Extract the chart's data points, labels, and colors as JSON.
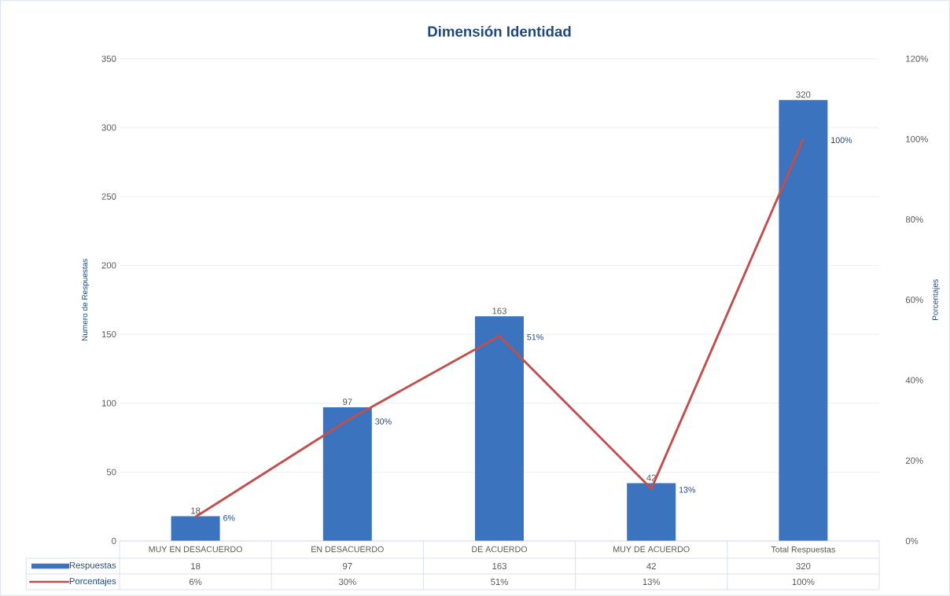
{
  "chart_data": {
    "type": "bar",
    "title": "Dimensión Identidad",
    "ylabel": "Numero de Respuestas",
    "y2label": "Porcentajes",
    "categories": [
      "MUY EN DESACUERDO",
      "EN DESACUERDO",
      "DE ACUERDO",
      "MUY DE ACUERDO",
      "Total Respuestas"
    ],
    "series": [
      {
        "name": "Respuestas",
        "color": "#3b73bf",
        "values": [
          18,
          97,
          163,
          42,
          320
        ],
        "value_labels": [
          "18",
          "97",
          "163",
          "42",
          "320"
        ]
      },
      {
        "name": "Porcentajes",
        "type": "line",
        "axis": "y2",
        "color": "#c0504d",
        "values": [
          6,
          30,
          51,
          13,
          100
        ],
        "value_labels": [
          "6%",
          "30%",
          "51%",
          "13%",
          "100%"
        ]
      }
    ],
    "ylim": [
      0,
      350
    ],
    "yticks": [
      0,
      50,
      100,
      150,
      200,
      250,
      300,
      350
    ],
    "y2lim": [
      0,
      120
    ],
    "y2ticks": [
      {
        "value": 0,
        "label": "0%"
      },
      {
        "value": 20,
        "label": "20%"
      },
      {
        "value": 40,
        "label": "40%"
      },
      {
        "value": 60,
        "label": "60%"
      },
      {
        "value": 80,
        "label": "80%"
      },
      {
        "value": 100,
        "label": "100%"
      },
      {
        "value": 120,
        "label": "120%"
      }
    ],
    "grid": "y",
    "legend": "bottom"
  }
}
